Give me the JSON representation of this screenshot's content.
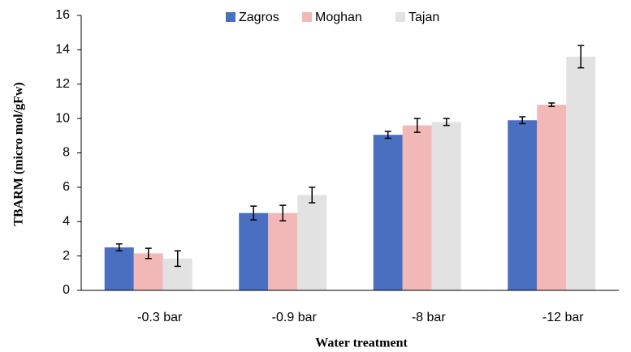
{
  "chart_data": {
    "type": "bar",
    "x_label": "Water treatment",
    "y_label": "TBARM (micro mol/gFw)",
    "categories": [
      "-0.3 bar",
      "-0.9 bar",
      "-8 bar",
      "-12 bar"
    ],
    "series": [
      {
        "name": "Zagros",
        "color": "#4a6fc0",
        "values": [
          2.5,
          4.5,
          9.05,
          9.9
        ],
        "errors": [
          0.2,
          0.4,
          0.2,
          0.2
        ]
      },
      {
        "name": "Moghan",
        "color": "#f2b8b8",
        "values": [
          2.15,
          4.5,
          9.6,
          10.8
        ],
        "errors": [
          0.3,
          0.45,
          0.4,
          0.1
        ]
      },
      {
        "name": "Tajan",
        "color": "#e2e2e2",
        "values": [
          1.85,
          5.55,
          9.8,
          13.6
        ],
        "errors": [
          0.45,
          0.45,
          0.2,
          0.65
        ]
      }
    ],
    "ylim": [
      0,
      16
    ],
    "yticks": [
      0,
      2,
      4,
      6,
      8,
      10,
      12,
      14,
      16
    ],
    "legend": "top"
  }
}
